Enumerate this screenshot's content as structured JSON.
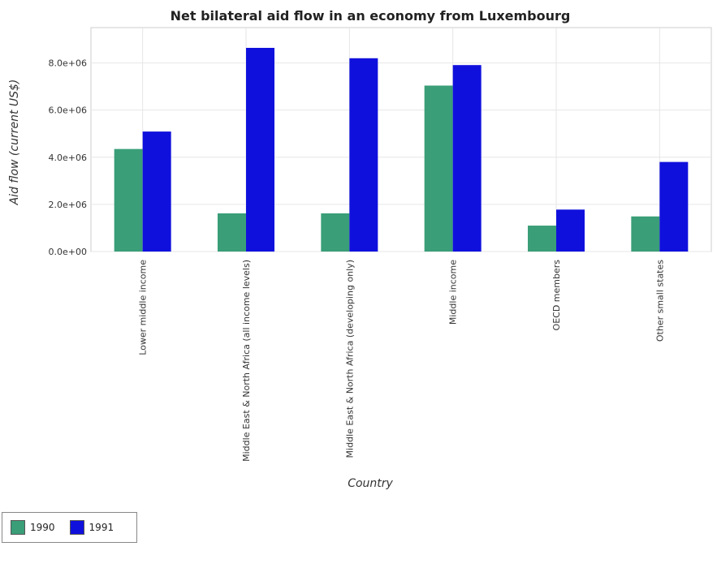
{
  "chart_data": {
    "type": "bar",
    "title": "Net bilateral aid flow in an economy from Luxembourg",
    "xlabel": "Country",
    "ylabel": "Aid flow (current US$)",
    "categories": [
      "Lower middle income",
      "Middle East & North Africa (all income levels)",
      "Middle East & North Africa (developing only)",
      "Middle income",
      "OECD members",
      "Other small states"
    ],
    "series": [
      {
        "name": "1990",
        "color": "#3a9e78",
        "values": [
          4350000,
          1620000,
          1620000,
          7040000,
          1100000,
          1490000
        ]
      },
      {
        "name": "1991",
        "color": "#1010dd",
        "values": [
          5090000,
          8640000,
          8200000,
          7910000,
          1780000,
          3800000
        ]
      }
    ],
    "ylim": [
      0,
      9500000
    ],
    "yticks": [
      0,
      2000000,
      4000000,
      6000000,
      8000000
    ],
    "ytick_labels": [
      "0.0e+00",
      "2.0e+06",
      "4.0e+06",
      "6.0e+06",
      "8.0e+06"
    ],
    "grid": true,
    "legend_position": "bottom-left"
  }
}
